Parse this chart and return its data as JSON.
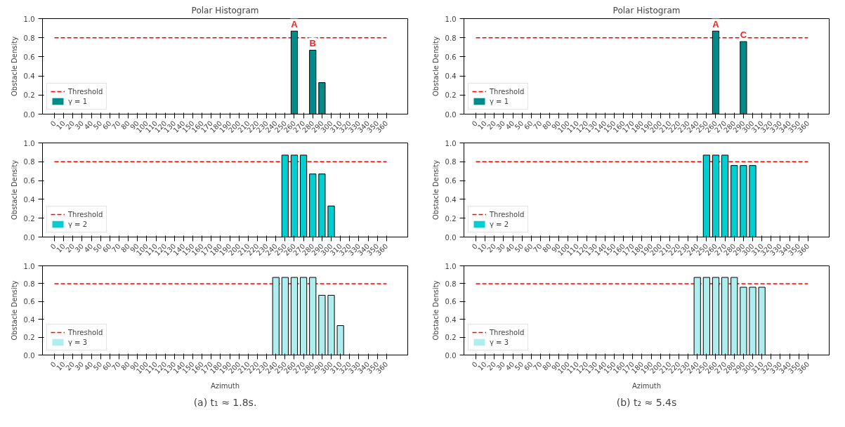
{
  "chart_data": [
    {
      "type": "bar",
      "title": "Polar Histogram",
      "ylabel": "Obstacle Density",
      "x": [
        0,
        10,
        20,
        30,
        40,
        50,
        60,
        70,
        80,
        90,
        100,
        110,
        120,
        130,
        140,
        150,
        160,
        170,
        180,
        190,
        200,
        210,
        220,
        230,
        240,
        250,
        260,
        270,
        280,
        290,
        300,
        310,
        320,
        330,
        340,
        350,
        360
      ],
      "series": [
        {
          "name": "γ = 1",
          "color": "#008b8b",
          "values": [
            0,
            0,
            0,
            0,
            0,
            0,
            0,
            0,
            0,
            0,
            0,
            0,
            0,
            0,
            0,
            0,
            0,
            0,
            0,
            0,
            0,
            0,
            0,
            0,
            0,
            0,
            0.87,
            0,
            0.67,
            0.33,
            0,
            0,
            0,
            0,
            0,
            0,
            0
          ]
        }
      ],
      "xlim": [
        -13,
        383
      ],
      "ylim": [
        0,
        1
      ],
      "xticks": [
        0,
        10,
        20,
        30,
        40,
        50,
        60,
        70,
        80,
        90,
        100,
        110,
        120,
        130,
        140,
        150,
        160,
        170,
        180,
        190,
        200,
        210,
        220,
        230,
        240,
        250,
        260,
        270,
        280,
        290,
        300,
        310,
        320,
        330,
        340,
        350,
        360
      ],
      "yticks": [
        {
          "value": 0,
          "label": "0.0"
        },
        {
          "value": 0.2,
          "label": "0.2"
        },
        {
          "value": 0.4,
          "label": "0.4"
        },
        {
          "value": 0.6,
          "label": "0.6"
        },
        {
          "value": 0.8,
          "label": "0.8"
        },
        {
          "value": 1,
          "label": "1.0"
        }
      ],
      "ref_lines": [
        {
          "axis": "y",
          "value": 0.8,
          "label": "Threshold",
          "color": "#ff0000",
          "line_style": "dashed"
        }
      ],
      "annotations": [
        {
          "text": "A",
          "x": 260,
          "y": 0.87
        },
        {
          "text": "B",
          "x": 280,
          "y": 0.67
        }
      ],
      "legend": "bottom left",
      "grid": false
    },
    {
      "type": "bar",
      "title": "Polar Histogram",
      "ylabel": "Obstacle Density",
      "x": [
        0,
        10,
        20,
        30,
        40,
        50,
        60,
        70,
        80,
        90,
        100,
        110,
        120,
        130,
        140,
        150,
        160,
        170,
        180,
        190,
        200,
        210,
        220,
        230,
        240,
        250,
        260,
        270,
        280,
        290,
        300,
        310,
        320,
        330,
        340,
        350,
        360
      ],
      "series": [
        {
          "name": "γ = 1",
          "color": "#008b8b",
          "values": [
            0,
            0,
            0,
            0,
            0,
            0,
            0,
            0,
            0,
            0,
            0,
            0,
            0,
            0,
            0,
            0,
            0,
            0,
            0,
            0,
            0,
            0,
            0,
            0,
            0,
            0,
            0.87,
            0,
            0,
            0.76,
            0,
            0,
            0,
            0,
            0,
            0,
            0
          ]
        }
      ],
      "xlim": [
        -13,
        383
      ],
      "ylim": [
        0,
        1
      ],
      "xticks": [
        0,
        10,
        20,
        30,
        40,
        50,
        60,
        70,
        80,
        90,
        100,
        110,
        120,
        130,
        140,
        150,
        160,
        170,
        180,
        190,
        200,
        210,
        220,
        230,
        240,
        250,
        260,
        270,
        280,
        290,
        300,
        310,
        320,
        330,
        340,
        350,
        360
      ],
      "yticks": [
        {
          "value": 0,
          "label": "0.0"
        },
        {
          "value": 0.2,
          "label": "0.2"
        },
        {
          "value": 0.4,
          "label": "0.4"
        },
        {
          "value": 0.6,
          "label": "0.6"
        },
        {
          "value": 0.8,
          "label": "0.8"
        },
        {
          "value": 1,
          "label": "1.0"
        }
      ],
      "ref_lines": [
        {
          "axis": "y",
          "value": 0.8,
          "label": "Threshold",
          "color": "#ff0000",
          "line_style": "dashed"
        }
      ],
      "annotations": [
        {
          "text": "A",
          "x": 260,
          "y": 0.87
        },
        {
          "text": "C",
          "x": 290,
          "y": 0.76
        }
      ],
      "legend": "bottom left",
      "grid": false
    },
    {
      "type": "bar",
      "ylabel": "Obstacle Density",
      "x": [
        0,
        10,
        20,
        30,
        40,
        50,
        60,
        70,
        80,
        90,
        100,
        110,
        120,
        130,
        140,
        150,
        160,
        170,
        180,
        190,
        200,
        210,
        220,
        230,
        240,
        250,
        260,
        270,
        280,
        290,
        300,
        310,
        320,
        330,
        340,
        350,
        360
      ],
      "series": [
        {
          "name": "γ = 2",
          "color": "#00ced1",
          "values": [
            0,
            0,
            0,
            0,
            0,
            0,
            0,
            0,
            0,
            0,
            0,
            0,
            0,
            0,
            0,
            0,
            0,
            0,
            0,
            0,
            0,
            0,
            0,
            0,
            0,
            0.87,
            0.87,
            0.87,
            0.67,
            0.67,
            0.33,
            0,
            0,
            0,
            0,
            0,
            0
          ]
        }
      ],
      "xlim": [
        -13,
        383
      ],
      "ylim": [
        0,
        1
      ],
      "xticks": [
        0,
        10,
        20,
        30,
        40,
        50,
        60,
        70,
        80,
        90,
        100,
        110,
        120,
        130,
        140,
        150,
        160,
        170,
        180,
        190,
        200,
        210,
        220,
        230,
        240,
        250,
        260,
        270,
        280,
        290,
        300,
        310,
        320,
        330,
        340,
        350,
        360
      ],
      "yticks": [
        {
          "value": 0,
          "label": "0.0"
        },
        {
          "value": 0.2,
          "label": "0.2"
        },
        {
          "value": 0.4,
          "label": "0.4"
        },
        {
          "value": 0.6,
          "label": "0.6"
        },
        {
          "value": 0.8,
          "label": "0.8"
        },
        {
          "value": 1,
          "label": "1.0"
        }
      ],
      "ref_lines": [
        {
          "axis": "y",
          "value": 0.8,
          "label": "Threshold",
          "color": "#ff0000",
          "line_style": "dashed"
        }
      ],
      "legend": "bottom left",
      "grid": false
    },
    {
      "type": "bar",
      "ylabel": "Obstacle Density",
      "x": [
        0,
        10,
        20,
        30,
        40,
        50,
        60,
        70,
        80,
        90,
        100,
        110,
        120,
        130,
        140,
        150,
        160,
        170,
        180,
        190,
        200,
        210,
        220,
        230,
        240,
        250,
        260,
        270,
        280,
        290,
        300,
        310,
        320,
        330,
        340,
        350,
        360
      ],
      "series": [
        {
          "name": "γ = 2",
          "color": "#00ced1",
          "values": [
            0,
            0,
            0,
            0,
            0,
            0,
            0,
            0,
            0,
            0,
            0,
            0,
            0,
            0,
            0,
            0,
            0,
            0,
            0,
            0,
            0,
            0,
            0,
            0,
            0,
            0.87,
            0.87,
            0.87,
            0.76,
            0.76,
            0.76,
            0,
            0,
            0,
            0,
            0,
            0
          ]
        }
      ],
      "xlim": [
        -13,
        383
      ],
      "ylim": [
        0,
        1
      ],
      "xticks": [
        0,
        10,
        20,
        30,
        40,
        50,
        60,
        70,
        80,
        90,
        100,
        110,
        120,
        130,
        140,
        150,
        160,
        170,
        180,
        190,
        200,
        210,
        220,
        230,
        240,
        250,
        260,
        270,
        280,
        290,
        300,
        310,
        320,
        330,
        340,
        350,
        360
      ],
      "yticks": [
        {
          "value": 0,
          "label": "0.0"
        },
        {
          "value": 0.2,
          "label": "0.2"
        },
        {
          "value": 0.4,
          "label": "0.4"
        },
        {
          "value": 0.6,
          "label": "0.6"
        },
        {
          "value": 0.8,
          "label": "0.8"
        },
        {
          "value": 1,
          "label": "1.0"
        }
      ],
      "ref_lines": [
        {
          "axis": "y",
          "value": 0.8,
          "label": "Threshold",
          "color": "#ff0000",
          "line_style": "dashed"
        }
      ],
      "legend": "bottom left",
      "grid": false
    },
    {
      "type": "bar",
      "xlabel": "Azimuth",
      "ylabel": "Obstacle Density",
      "x": [
        0,
        10,
        20,
        30,
        40,
        50,
        60,
        70,
        80,
        90,
        100,
        110,
        120,
        130,
        140,
        150,
        160,
        170,
        180,
        190,
        200,
        210,
        220,
        230,
        240,
        250,
        260,
        270,
        280,
        290,
        300,
        310,
        320,
        330,
        340,
        350,
        360
      ],
      "series": [
        {
          "name": "γ = 3",
          "color": "#afeeee",
          "values": [
            0,
            0,
            0,
            0,
            0,
            0,
            0,
            0,
            0,
            0,
            0,
            0,
            0,
            0,
            0,
            0,
            0,
            0,
            0,
            0,
            0,
            0,
            0,
            0,
            0.87,
            0.87,
            0.87,
            0.87,
            0.87,
            0.67,
            0.67,
            0.33,
            0,
            0,
            0,
            0,
            0
          ]
        }
      ],
      "xlim": [
        -13,
        383
      ],
      "ylim": [
        0,
        1
      ],
      "xticks": [
        0,
        10,
        20,
        30,
        40,
        50,
        60,
        70,
        80,
        90,
        100,
        110,
        120,
        130,
        140,
        150,
        160,
        170,
        180,
        190,
        200,
        210,
        220,
        230,
        240,
        250,
        260,
        270,
        280,
        290,
        300,
        310,
        320,
        330,
        340,
        350,
        360
      ],
      "yticks": [
        {
          "value": 0,
          "label": "0.0"
        },
        {
          "value": 0.2,
          "label": "0.2"
        },
        {
          "value": 0.4,
          "label": "0.4"
        },
        {
          "value": 0.6,
          "label": "0.6"
        },
        {
          "value": 0.8,
          "label": "0.8"
        },
        {
          "value": 1,
          "label": "1.0"
        }
      ],
      "ref_lines": [
        {
          "axis": "y",
          "value": 0.8,
          "label": "Threshold",
          "color": "#ff0000",
          "line_style": "dashed"
        }
      ],
      "annotations": [
        "(a) t₁ ≈ 1.8s."
      ],
      "legend": "bottom left",
      "grid": false
    },
    {
      "type": "bar",
      "xlabel": "Azimuth",
      "ylabel": "Obstacle Density",
      "x": [
        0,
        10,
        20,
        30,
        40,
        50,
        60,
        70,
        80,
        90,
        100,
        110,
        120,
        130,
        140,
        150,
        160,
        170,
        180,
        190,
        200,
        210,
        220,
        230,
        240,
        250,
        260,
        270,
        280,
        290,
        300,
        310,
        320,
        330,
        340,
        350,
        360
      ],
      "series": [
        {
          "name": "γ = 3",
          "color": "#afeeee",
          "values": [
            0,
            0,
            0,
            0,
            0,
            0,
            0,
            0,
            0,
            0,
            0,
            0,
            0,
            0,
            0,
            0,
            0,
            0,
            0,
            0,
            0,
            0,
            0,
            0,
            0.87,
            0.87,
            0.87,
            0.87,
            0.87,
            0.76,
            0.76,
            0.76,
            0,
            0,
            0,
            0,
            0
          ]
        }
      ],
      "xlim": [
        -13,
        383
      ],
      "ylim": [
        0,
        1
      ],
      "xticks": [
        0,
        10,
        20,
        30,
        40,
        50,
        60,
        70,
        80,
        90,
        100,
        110,
        120,
        130,
        140,
        150,
        160,
        170,
        180,
        190,
        200,
        210,
        220,
        230,
        240,
        250,
        260,
        270,
        280,
        290,
        300,
        310,
        320,
        330,
        340,
        350,
        360
      ],
      "yticks": [
        {
          "value": 0,
          "label": "0.0"
        },
        {
          "value": 0.2,
          "label": "0.2"
        },
        {
          "value": 0.4,
          "label": "0.4"
        },
        {
          "value": 0.6,
          "label": "0.6"
        },
        {
          "value": 0.8,
          "label": "0.8"
        },
        {
          "value": 1,
          "label": "1.0"
        }
      ],
      "ref_lines": [
        {
          "axis": "y",
          "value": 0.8,
          "label": "Threshold",
          "color": "#ff0000",
          "line_style": "dashed"
        }
      ],
      "annotations": [
        "(b) t₂ ≈ 5.4s"
      ],
      "legend": "bottom left",
      "grid": false
    }
  ]
}
